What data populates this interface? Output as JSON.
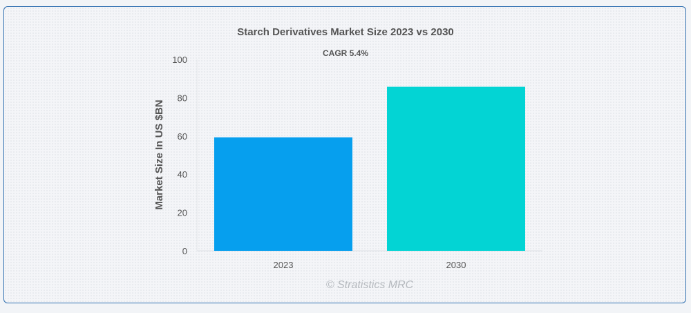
{
  "chart_data": {
    "type": "bar",
    "title": "Starch Derivatives Market Size 2023 vs 2030",
    "subtitle": "CAGR 5.4%",
    "categories": [
      "2023",
      "2030"
    ],
    "values": [
      59.3,
      85.7
    ],
    "colors": [
      "#069fee",
      "#03d4d4"
    ],
    "xlabel": "",
    "ylabel": "Market Size In US $BN",
    "ylim": [
      0,
      100
    ],
    "yticks": [
      "0",
      "20",
      "40",
      "60",
      "80",
      "100"
    ],
    "grid": false,
    "legend": "none"
  },
  "watermark": "© Stratistics MRC"
}
